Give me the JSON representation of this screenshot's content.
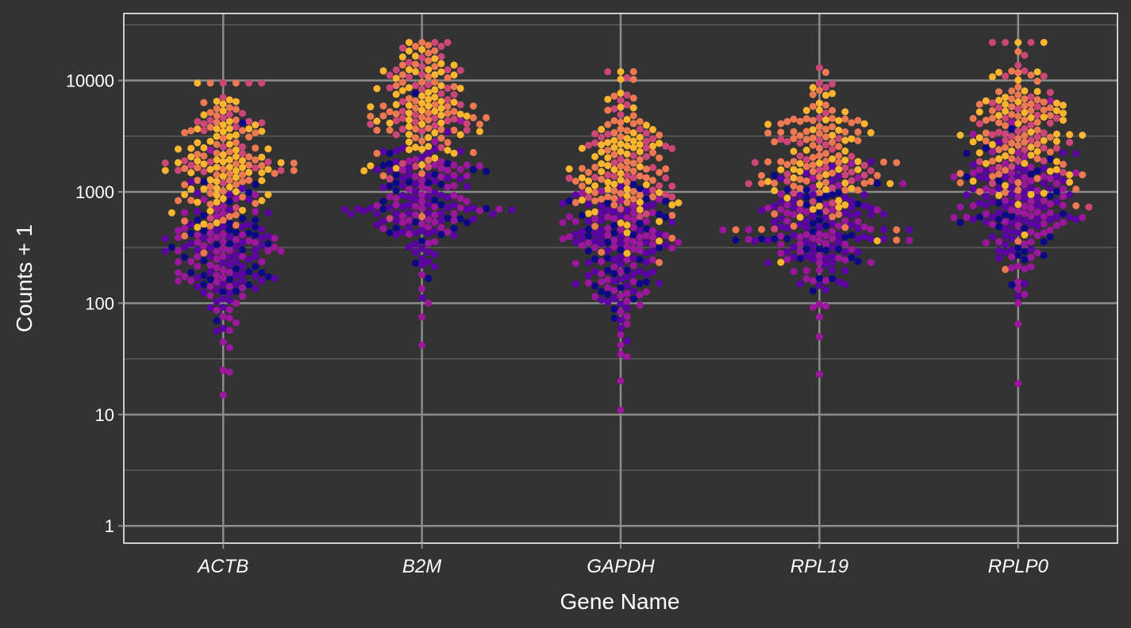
{
  "chart_data": {
    "type": "scatter",
    "subtype": "beeswarm",
    "xlabel": "Gene Name",
    "ylabel": "Counts + 1",
    "y_scale": "log10",
    "ylim": [
      0.7,
      40000
    ],
    "y_ticks": [
      1,
      10,
      100,
      1000,
      10000
    ],
    "y_tick_labels": [
      "1",
      "10",
      "100",
      "1000",
      "10000"
    ],
    "categories": [
      "ACTB",
      "B2M",
      "GAPDH",
      "RPL19",
      "RPLP0"
    ],
    "grid": true,
    "legend": "none",
    "colormap": "plasma",
    "colors": {
      "background": "#333333",
      "panel_border": "#ffffff",
      "grid_major": "#8c8c8c",
      "grid_minor": "#6e6e6e",
      "text": "#ffffff"
    },
    "palette": [
      "#0d0887",
      "#5c01a6",
      "#9c179e",
      "#cc4778",
      "#ed7953",
      "#fdb42f",
      "#f0f921"
    ],
    "groups": [
      {
        "name": "ACTB",
        "upper": {
          "center": 2000,
          "spread": 0.35
        },
        "lower": {
          "center": 300,
          "spread": 0.3
        },
        "min": 15,
        "max": 9500,
        "outliers_low": [
          15,
          24,
          25,
          40,
          45,
          57
        ]
      },
      {
        "name": "B2M",
        "upper": {
          "center": 6000,
          "spread": 0.3
        },
        "lower": {
          "center": 800,
          "spread": 0.3
        },
        "min": 42,
        "max": 22000,
        "outliers_low": [
          42,
          75,
          100,
          135,
          180
        ]
      },
      {
        "name": "GAPDH",
        "upper": {
          "center": 1500,
          "spread": 0.35
        },
        "lower": {
          "center": 300,
          "spread": 0.33
        },
        "min": 11,
        "max": 12000,
        "outliers_low": [
          11,
          20,
          33,
          35,
          42,
          52,
          65
        ]
      },
      {
        "name": "RPL19",
        "upper": {
          "center": 2000,
          "spread": 0.33
        },
        "lower": {
          "center": 450,
          "spread": 0.28
        },
        "min": 23,
        "max": 13000,
        "outliers_low": [
          23,
          50,
          75,
          92
        ]
      },
      {
        "name": "RPLP0",
        "upper": {
          "center": 3500,
          "spread": 0.33
        },
        "lower": {
          "center": 700,
          "spread": 0.3
        },
        "min": 19,
        "max": 22000,
        "outliers_low": [
          19,
          65,
          100,
          120
        ]
      }
    ]
  }
}
